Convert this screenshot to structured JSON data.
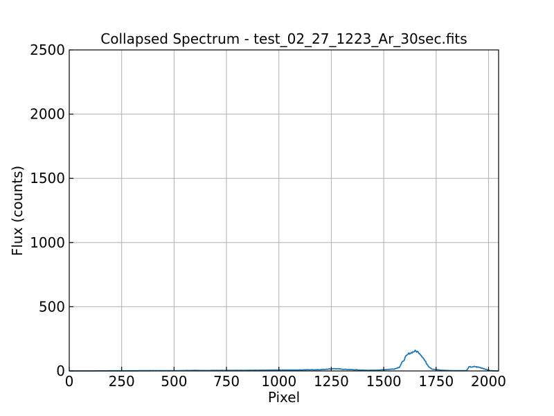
{
  "chart_data": {
    "type": "line",
    "title": "Collapsed Spectrum - test_02_27_1223_Ar_30sec.fits",
    "xlabel": "Pixel",
    "ylabel": "Flux (counts)",
    "xlim": [
      0,
      2048
    ],
    "ylim": [
      0,
      2500
    ],
    "xticks": [
      0,
      250,
      500,
      750,
      1000,
      1250,
      1500,
      1750,
      2000
    ],
    "yticks": [
      0,
      500,
      1000,
      1500,
      2000,
      2500
    ],
    "grid": true,
    "color": "#1f77b4",
    "series": [
      {
        "x": [
          0,
          100,
          200,
          300,
          400,
          500,
          550,
          600,
          650,
          700,
          750,
          800,
          850,
          900,
          950,
          1000,
          1050,
          1100,
          1150,
          1200,
          1230,
          1260,
          1290,
          1320,
          1350,
          1380,
          1400,
          1430,
          1460,
          1490,
          1520,
          1550,
          1575,
          1590,
          1605,
          1620,
          1635,
          1650,
          1660,
          1670,
          1685,
          1700,
          1715,
          1730,
          1750,
          1780,
          1810,
          1840,
          1870,
          1895,
          1905,
          1915,
          1925,
          1935,
          1945,
          1955,
          1965,
          1975,
          1985,
          1995,
          2005,
          2020,
          2047
        ],
        "y": [
          0,
          0,
          1,
          1,
          2,
          2,
          3,
          4,
          3,
          4,
          4,
          5,
          5,
          6,
          6,
          7,
          7,
          8,
          9,
          10,
          14,
          18,
          15,
          12,
          10,
          8,
          6,
          5,
          6,
          8,
          12,
          15,
          30,
          70,
          110,
          135,
          145,
          155,
          150,
          140,
          110,
          70,
          35,
          15,
          10,
          5,
          3,
          2,
          2,
          2,
          28,
          32,
          30,
          34,
          30,
          28,
          24,
          20,
          14,
          8,
          3,
          1,
          0
        ]
      }
    ]
  }
}
